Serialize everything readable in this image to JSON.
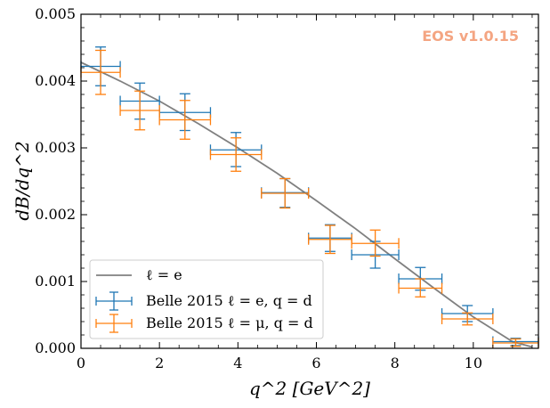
{
  "chart_data": {
    "type": "scatter",
    "title": "",
    "xlabel": "q^2 [GeV^2]",
    "ylabel": "dB/dq^2",
    "xlim": [
      0,
      11.66
    ],
    "ylim": [
      0,
      0.005
    ],
    "x_ticks": [
      0,
      2,
      4,
      6,
      8,
      10
    ],
    "x_tick_labels": [
      "0",
      "2",
      "4",
      "6",
      "8",
      "10"
    ],
    "y_ticks": [
      0.0,
      0.001,
      0.002,
      0.003,
      0.004,
      0.005
    ],
    "y_tick_labels": [
      "0.000",
      "0.001",
      "0.002",
      "0.003",
      "0.004",
      "0.005"
    ],
    "watermark": "EOS v1.0.15",
    "legend_position": "lower-left",
    "line": {
      "name": "ℓ = e",
      "legend_label": "ℓ = e",
      "color": "#808080",
      "x": [
        0,
        1,
        2,
        3,
        4,
        5,
        6,
        7,
        8,
        9,
        10,
        11,
        11.5
      ],
      "y": [
        0.00428,
        0.004,
        0.0037,
        0.00336,
        0.003,
        0.00262,
        0.00221,
        0.00179,
        0.00134,
        0.0009,
        0.00047,
        0.0001,
        2e-05
      ]
    },
    "series": [
      {
        "name": "Belle 2015 ℓ = e, q = d",
        "legend_label": "Belle 2015 ℓ = e, q = d",
        "color": "#1f77b4",
        "points": [
          {
            "x0": 0.0,
            "x1": 1.0,
            "y": 0.00422,
            "ylo": 0.00393,
            "yhi": 0.00451
          },
          {
            "x0": 1.0,
            "x1": 2.0,
            "y": 0.0037,
            "ylo": 0.00343,
            "yhi": 0.00397
          },
          {
            "x0": 2.0,
            "x1": 3.3,
            "y": 0.00353,
            "ylo": 0.00326,
            "yhi": 0.00381
          },
          {
            "x0": 3.3,
            "x1": 4.6,
            "y": 0.00297,
            "ylo": 0.00272,
            "yhi": 0.00323
          },
          {
            "x0": 4.6,
            "x1": 5.8,
            "y": 0.00233,
            "ylo": 0.00211,
            "yhi": 0.00254
          },
          {
            "x0": 5.8,
            "x1": 6.9,
            "y": 0.00165,
            "ylo": 0.00145,
            "yhi": 0.00185
          },
          {
            "x0": 6.9,
            "x1": 8.1,
            "y": 0.0014,
            "ylo": 0.0012,
            "yhi": 0.0016
          },
          {
            "x0": 8.1,
            "x1": 9.2,
            "y": 0.00104,
            "ylo": 0.00087,
            "yhi": 0.00121
          },
          {
            "x0": 9.2,
            "x1": 10.5,
            "y": 0.00052,
            "ylo": 0.0004,
            "yhi": 0.00064
          },
          {
            "x0": 10.5,
            "x1": 11.66,
            "y": 0.0001,
            "ylo": 4e-05,
            "yhi": 0.00015
          }
        ]
      },
      {
        "name": "Belle 2015 ℓ = μ, q = d",
        "legend_label": "Belle 2015 ℓ = μ, q = d",
        "color": "#ff7f0e",
        "points": [
          {
            "x0": 0.0,
            "x1": 1.0,
            "y": 0.00413,
            "ylo": 0.0038,
            "yhi": 0.00446
          },
          {
            "x0": 1.0,
            "x1": 2.0,
            "y": 0.00356,
            "ylo": 0.00327,
            "yhi": 0.00385
          },
          {
            "x0": 2.0,
            "x1": 3.3,
            "y": 0.00342,
            "ylo": 0.00313,
            "yhi": 0.00371
          },
          {
            "x0": 3.3,
            "x1": 4.6,
            "y": 0.0029,
            "ylo": 0.00265,
            "yhi": 0.00315
          },
          {
            "x0": 4.6,
            "x1": 5.8,
            "y": 0.00232,
            "ylo": 0.0021,
            "yhi": 0.00254
          },
          {
            "x0": 5.8,
            "x1": 6.9,
            "y": 0.00163,
            "ylo": 0.00142,
            "yhi": 0.00184
          },
          {
            "x0": 6.9,
            "x1": 8.1,
            "y": 0.00157,
            "ylo": 0.00138,
            "yhi": 0.00177
          },
          {
            "x0": 8.1,
            "x1": 9.2,
            "y": 0.0009,
            "ylo": 0.00077,
            "yhi": 0.00104
          },
          {
            "x0": 9.2,
            "x1": 10.5,
            "y": 0.00044,
            "ylo": 0.00035,
            "yhi": 0.00053
          },
          {
            "x0": 10.5,
            "x1": 11.66,
            "y": 8e-05,
            "ylo": 3e-05,
            "yhi": 0.00014
          }
        ]
      }
    ]
  }
}
